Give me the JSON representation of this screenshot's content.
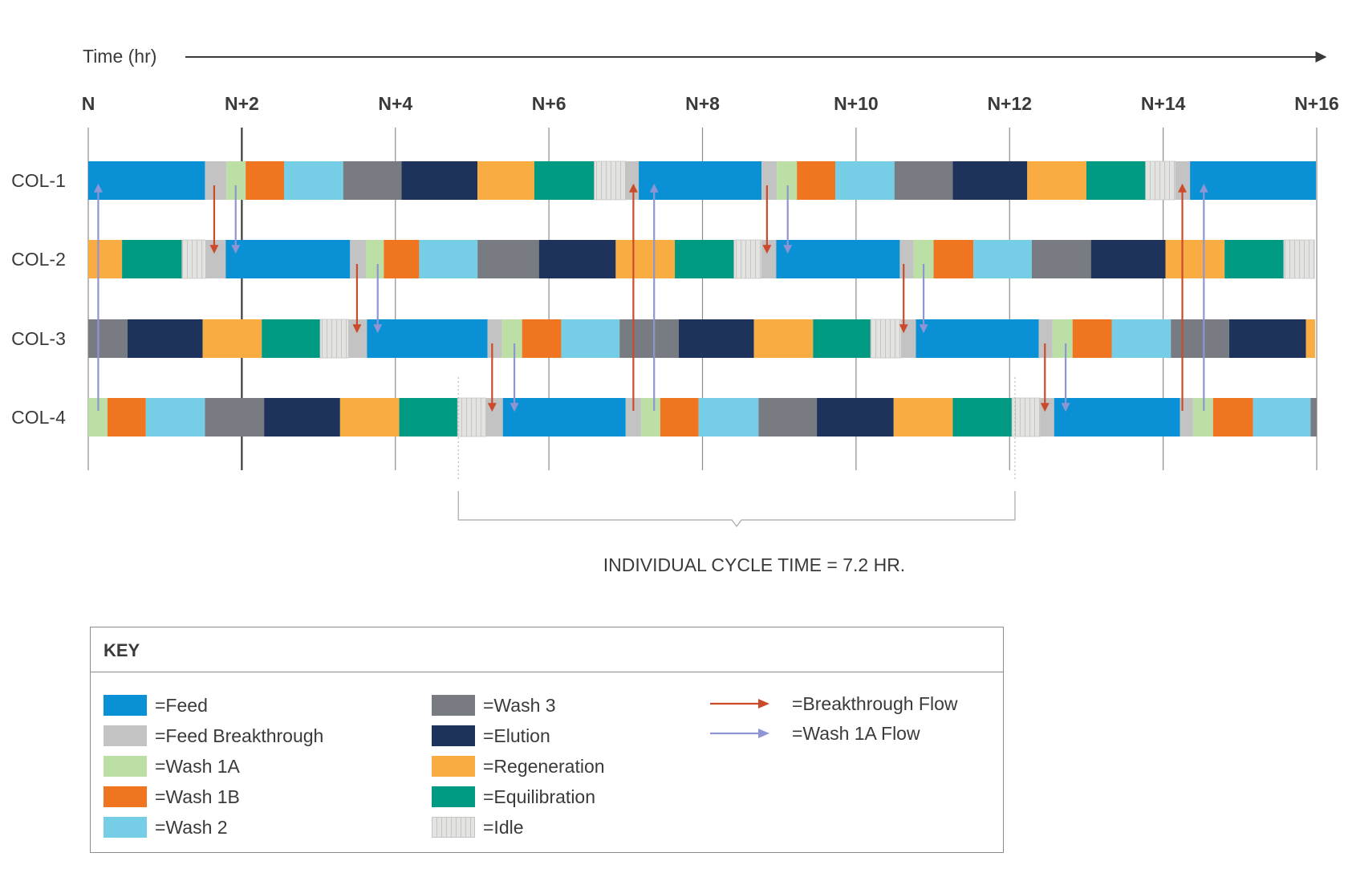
{
  "axis": {
    "label": "Time (hr)",
    "tick_labels": [
      "N",
      "N+2",
      "N+4",
      "N+6",
      "N+8",
      "N+10",
      "N+12",
      "N+14",
      "N+16"
    ],
    "range_hr": [
      0,
      16
    ]
  },
  "columns": [
    {
      "name": "COL-1",
      "phases": [
        [
          "feed",
          1.52
        ],
        [
          "feed_breakthrough",
          0.28
        ],
        [
          "wash1a",
          0.25
        ],
        [
          "wash1b",
          0.5
        ],
        [
          "wash2",
          0.77
        ],
        [
          "wash3",
          0.76
        ],
        [
          "elution",
          0.99
        ],
        [
          "regeneration",
          0.74
        ],
        [
          "equilibration",
          0.78
        ],
        [
          "idle",
          0.41
        ],
        [
          "feed_breakthrough",
          0.17
        ],
        [
          "feed",
          1.6
        ],
        [
          "feed_breakthrough",
          0.2
        ],
        [
          "wash1a",
          0.26
        ],
        [
          "wash1b",
          0.5
        ],
        [
          "wash2",
          0.77
        ],
        [
          "wash3",
          0.76
        ],
        [
          "elution",
          0.97
        ],
        [
          "regeneration",
          0.77
        ],
        [
          "equilibration",
          0.77
        ],
        [
          "idle",
          0.39
        ],
        [
          "feed_breakthrough",
          0.19
        ],
        [
          "feed",
          1.64
        ]
      ]
    },
    {
      "name": "COL-2",
      "phases": [
        [
          "regeneration",
          0.44
        ],
        [
          "equilibration",
          0.78
        ],
        [
          "idle",
          0.31
        ],
        [
          "feed_breakthrough",
          0.26
        ],
        [
          "feed",
          1.62
        ],
        [
          "feed_breakthrough",
          0.21
        ],
        [
          "wash1a",
          0.23
        ],
        [
          "wash1b",
          0.46
        ],
        [
          "wash2",
          0.76
        ],
        [
          "wash3",
          0.8
        ],
        [
          "elution",
          1.0
        ],
        [
          "regeneration",
          0.77
        ],
        [
          "equilibration",
          0.77
        ],
        [
          "idle",
          0.36
        ],
        [
          "feed_breakthrough",
          0.19
        ],
        [
          "feed",
          1.61
        ],
        [
          "feed_breakthrough",
          0.18
        ],
        [
          "wash1a",
          0.26
        ],
        [
          "wash1b",
          0.52
        ],
        [
          "wash2",
          0.76
        ],
        [
          "wash3",
          0.77
        ],
        [
          "elution",
          0.97
        ],
        [
          "regeneration",
          0.77
        ],
        [
          "equilibration",
          0.77
        ],
        [
          "idle",
          0.4
        ]
      ]
    },
    {
      "name": "COL-3",
      "phases": [
        [
          "wash3",
          0.51
        ],
        [
          "elution",
          0.98
        ],
        [
          "regeneration",
          0.77
        ],
        [
          "equilibration",
          0.76
        ],
        [
          "idle",
          0.37
        ],
        [
          "feed_breakthrough",
          0.24
        ],
        [
          "feed",
          1.57
        ],
        [
          "feed_breakthrough",
          0.19
        ],
        [
          "wash1a",
          0.26
        ],
        [
          "wash1b",
          0.51
        ],
        [
          "wash2",
          0.76
        ],
        [
          "wash3",
          0.77
        ],
        [
          "elution",
          0.98
        ],
        [
          "regeneration",
          0.77
        ],
        [
          "equilibration",
          0.75
        ],
        [
          "idle",
          0.4
        ],
        [
          "feed_breakthrough",
          0.19
        ],
        [
          "feed",
          1.6
        ],
        [
          "feed_breakthrough",
          0.18
        ],
        [
          "wash1a",
          0.26
        ],
        [
          "wash1b",
          0.51
        ],
        [
          "wash2",
          0.77
        ],
        [
          "wash3",
          0.76
        ],
        [
          "elution",
          1.0
        ],
        [
          "regeneration",
          0.12
        ]
      ]
    },
    {
      "name": "COL-4",
      "phases": [
        [
          "wash1a",
          0.25
        ],
        [
          "wash1b",
          0.5
        ],
        [
          "wash2",
          0.77
        ],
        [
          "wash3",
          0.77
        ],
        [
          "elution",
          0.99
        ],
        [
          "regeneration",
          0.77
        ],
        [
          "equilibration",
          0.76
        ],
        [
          "idle",
          0.37
        ],
        [
          "feed_breakthrough",
          0.22
        ],
        [
          "feed",
          1.6
        ],
        [
          "feed_breakthrough",
          0.2
        ],
        [
          "wash1a",
          0.25
        ],
        [
          "wash1b",
          0.5
        ],
        [
          "wash2",
          0.78
        ],
        [
          "wash3",
          0.76
        ],
        [
          "elution",
          1.0
        ],
        [
          "regeneration",
          0.77
        ],
        [
          "equilibration",
          0.77
        ],
        [
          "idle",
          0.37
        ],
        [
          "feed_breakthrough",
          0.18
        ],
        [
          "feed",
          1.64
        ],
        [
          "feed_breakthrough",
          0.17
        ],
        [
          "wash1a",
          0.26
        ],
        [
          "wash1b",
          0.52
        ],
        [
          "wash2",
          0.75
        ],
        [
          "wash3",
          0.1
        ]
      ]
    }
  ],
  "flows": [
    {
      "type": "breakthrough",
      "from": "COL-1",
      "to": "COL-2",
      "time_hr": 1.64
    },
    {
      "type": "wash1a",
      "from": "COL-1",
      "to": "COL-2",
      "time_hr": 1.92
    },
    {
      "type": "breakthrough",
      "from": "COL-2",
      "to": "COL-3",
      "time_hr": 3.5
    },
    {
      "type": "wash1a",
      "from": "COL-2",
      "to": "COL-3",
      "time_hr": 3.77
    },
    {
      "type": "breakthrough",
      "from": "COL-3",
      "to": "COL-4",
      "time_hr": 5.26
    },
    {
      "type": "wash1a",
      "from": "COL-3",
      "to": "COL-4",
      "time_hr": 5.55
    },
    {
      "type": "breakthrough",
      "from": "COL-4",
      "to": "COL-1",
      "time_hr": 7.1
    },
    {
      "type": "wash1a",
      "from": "COL-4",
      "to": "COL-1",
      "time_hr": 7.37
    },
    {
      "type": "breakthrough",
      "from": "COL-1",
      "to": "COL-2",
      "time_hr": 8.84
    },
    {
      "type": "wash1a",
      "from": "COL-1",
      "to": "COL-2",
      "time_hr": 9.11
    },
    {
      "type": "breakthrough",
      "from": "COL-2",
      "to": "COL-3",
      "time_hr": 10.62
    },
    {
      "type": "wash1a",
      "from": "COL-2",
      "to": "COL-3",
      "time_hr": 10.88
    },
    {
      "type": "breakthrough",
      "from": "COL-3",
      "to": "COL-4",
      "time_hr": 12.46
    },
    {
      "type": "wash1a",
      "from": "COL-3",
      "to": "COL-4",
      "time_hr": 12.73
    },
    {
      "type": "breakthrough",
      "from": "COL-4",
      "to": "COL-1",
      "time_hr": 14.25
    },
    {
      "type": "wash1a",
      "from": "COL-4",
      "to": "COL-1",
      "time_hr": 14.53
    },
    {
      "type": "wash1a",
      "from": "COL-4",
      "to": "COL-1",
      "time_hr": 0.13
    }
  ],
  "cycle": {
    "label": "INDIVIDUAL CYCLE TIME = 7.2 HR.",
    "start_hr": 4.82,
    "end_hr": 12.07
  },
  "colors": {
    "feed": "#0a90d4",
    "feed_breakthrough": "#c3c3c3",
    "wash1a": "#bcdfa6",
    "wash1b": "#f07521",
    "wash2": "#76cde6",
    "wash3": "#787c82",
    "elution": "#1e335c",
    "regeneration": "#f9ac42",
    "equilibration": "#009a82",
    "idle": "#e3e3e1",
    "breakthrough_flow": "#cc4a2c",
    "wash1a_flow": "#8e95d4",
    "axis": "#3a3a3a",
    "grid": "#8c8c8c"
  },
  "key": {
    "title": "KEY",
    "items": [
      {
        "phase": "feed",
        "label": "=Feed"
      },
      {
        "phase": "feed_breakthrough",
        "label": "=Feed Breakthrough"
      },
      {
        "phase": "wash1a",
        "label": "=Wash 1A"
      },
      {
        "phase": "wash1b",
        "label": "=Wash 1B"
      },
      {
        "phase": "wash2",
        "label": "=Wash 2"
      },
      {
        "phase": "wash3",
        "label": "=Wash 3"
      },
      {
        "phase": "elution",
        "label": "=Elution"
      },
      {
        "phase": "regeneration",
        "label": "=Regeneration"
      },
      {
        "phase": "equilibration",
        "label": "=Equilibration"
      },
      {
        "phase": "idle",
        "label": "=Idle"
      }
    ],
    "flows": [
      {
        "type": "breakthrough",
        "label": "=Breakthrough Flow"
      },
      {
        "type": "wash1a",
        "label": "=Wash 1A Flow"
      }
    ]
  }
}
